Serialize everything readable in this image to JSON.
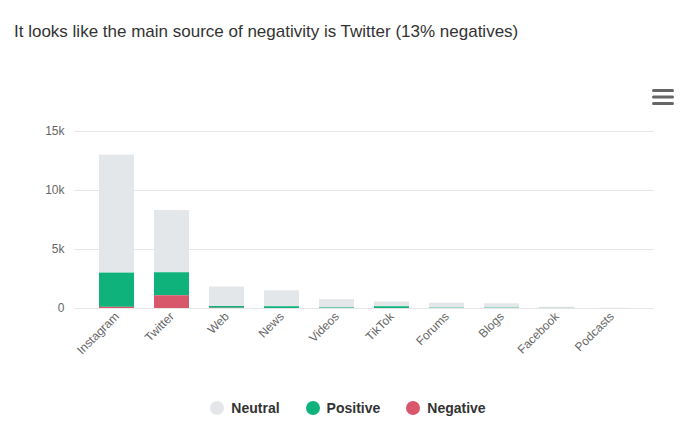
{
  "chart_data": {
    "type": "bar",
    "title": "It looks like the main source of negativity is Twitter (13% negatives)",
    "categories": [
      "Instagram",
      "Twitter",
      "Web",
      "News",
      "Videos",
      "TikTok",
      "Forums",
      "Blogs",
      "Facebook",
      "Podcasts"
    ],
    "series": [
      {
        "name": "Neutral",
        "color": "#e4e7ea",
        "values": [
          10000,
          5270,
          1650,
          1350,
          700,
          400,
          420,
          370,
          90,
          20
        ]
      },
      {
        "name": "Positive",
        "color": "#10b27c",
        "values": [
          2900,
          1950,
          150,
          150,
          50,
          150,
          30,
          30,
          10,
          0
        ]
      },
      {
        "name": "Negative",
        "color": "#d9576a",
        "values": [
          100,
          1080,
          20,
          0,
          0,
          0,
          0,
          0,
          0,
          0
        ]
      }
    ],
    "ylim": [
      0,
      15000
    ],
    "yticks": [
      {
        "value": 0,
        "label": "0"
      },
      {
        "value": 5000,
        "label": "5k"
      },
      {
        "value": 10000,
        "label": "10k"
      },
      {
        "value": 15000,
        "label": "15k"
      }
    ],
    "stacked": true,
    "grid": true,
    "legend": "bottom"
  }
}
